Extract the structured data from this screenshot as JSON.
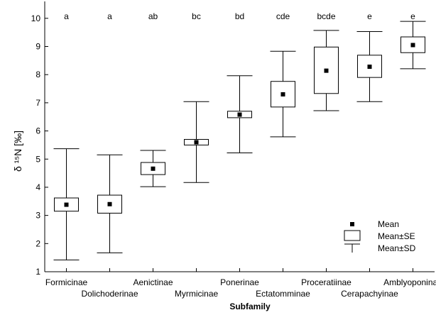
{
  "chart_data": {
    "type": "boxplot",
    "xlabel": "Subfamily",
    "ylabel": "δ ¹⁵N [‰]",
    "ylim": [
      1,
      10.6
    ],
    "yticks": [
      1,
      2,
      3,
      4,
      5,
      6,
      7,
      8,
      9,
      10
    ],
    "grid": false,
    "legend_position": "bottom-right",
    "categories": [
      "Formicinae",
      "Dolichoderinae",
      "Aenictinae",
      "Myrmicinae",
      "Ponerinae",
      "Ectatomminae",
      "Proceratiinae",
      "Cerapachyinae",
      "Amblyoponinae"
    ],
    "group_letters": [
      "a",
      "a",
      "ab",
      "bc",
      "bd",
      "cde",
      "bcde",
      "e",
      "e"
    ],
    "mean": [
      3.38,
      3.4,
      4.66,
      5.6,
      6.58,
      7.3,
      8.14,
      8.28,
      9.05
    ],
    "se_low": [
      3.15,
      3.08,
      4.45,
      5.5,
      6.47,
      6.85,
      7.33,
      7.9,
      8.78
    ],
    "se_high": [
      3.62,
      3.72,
      4.88,
      5.7,
      6.7,
      7.76,
      8.98,
      8.69,
      9.34
    ],
    "sd_low": [
      1.42,
      1.67,
      4.02,
      4.17,
      5.22,
      5.79,
      6.72,
      7.04,
      8.21
    ],
    "sd_high": [
      5.37,
      5.15,
      5.31,
      7.04,
      7.96,
      8.83,
      9.57,
      9.53,
      9.89
    ],
    "legend": {
      "mean_label": "Mean",
      "se_label": "Mean±SE",
      "sd_label": "Mean±SD"
    }
  }
}
